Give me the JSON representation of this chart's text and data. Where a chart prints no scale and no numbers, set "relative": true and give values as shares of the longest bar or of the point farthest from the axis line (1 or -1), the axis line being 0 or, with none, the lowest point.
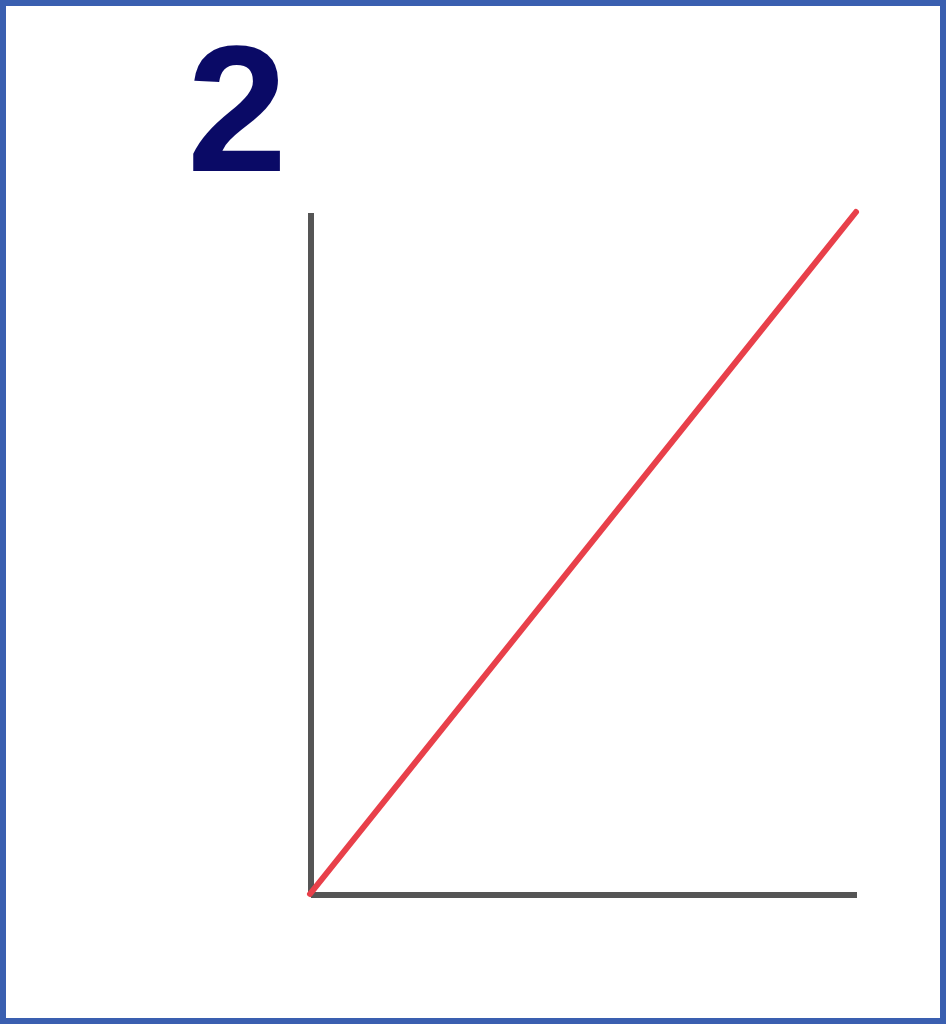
{
  "chart_data": {
    "type": "line",
    "title": "2",
    "relative": true,
    "categories": [
      null,
      null
    ],
    "series": [
      {
        "color": "#e8404a",
        "values": [
          0,
          1
        ]
      }
    ]
  }
}
